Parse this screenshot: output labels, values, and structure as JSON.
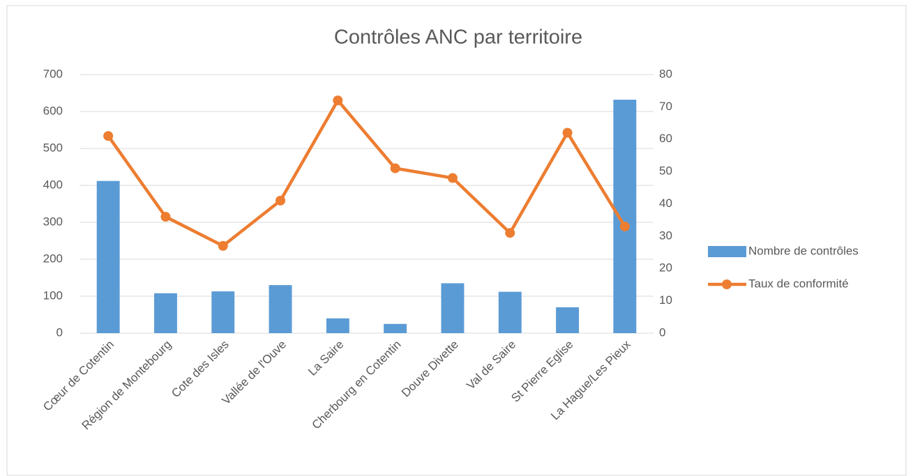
{
  "chart_data": {
    "type": "combo",
    "title": "Contrôles ANC par territoire",
    "categories": [
      "Cœur de Cotentin",
      "Région de Montebourg",
      "Cote des Isles",
      "Vallée de l'Ouve",
      "La Saire",
      "Cherbourg en Cotentin",
      "Douve Divette",
      "Val de Saire",
      "St Pierre Eglise",
      "La Hague/Les Pieux"
    ],
    "series": [
      {
        "name": "Nombre de contrôles",
        "type": "bar",
        "color": "#5b9bd5",
        "values": [
          412,
          108,
          113,
          130,
          40,
          25,
          135,
          112,
          70,
          632
        ]
      },
      {
        "name": "Taux de conformité",
        "type": "line",
        "axis": "y2",
        "color": "#ed7d31",
        "values": [
          61,
          36,
          27,
          41,
          72,
          51,
          48,
          31,
          62,
          33
        ]
      }
    ],
    "ylim": [
      0,
      700
    ],
    "yticks": [
      0,
      100,
      200,
      300,
      400,
      500,
      600,
      700
    ],
    "y2lim": [
      0,
      80
    ],
    "y2ticks": [
      0,
      10,
      20,
      30,
      40,
      50,
      60,
      70,
      80
    ],
    "grid": true,
    "legend": "right"
  }
}
